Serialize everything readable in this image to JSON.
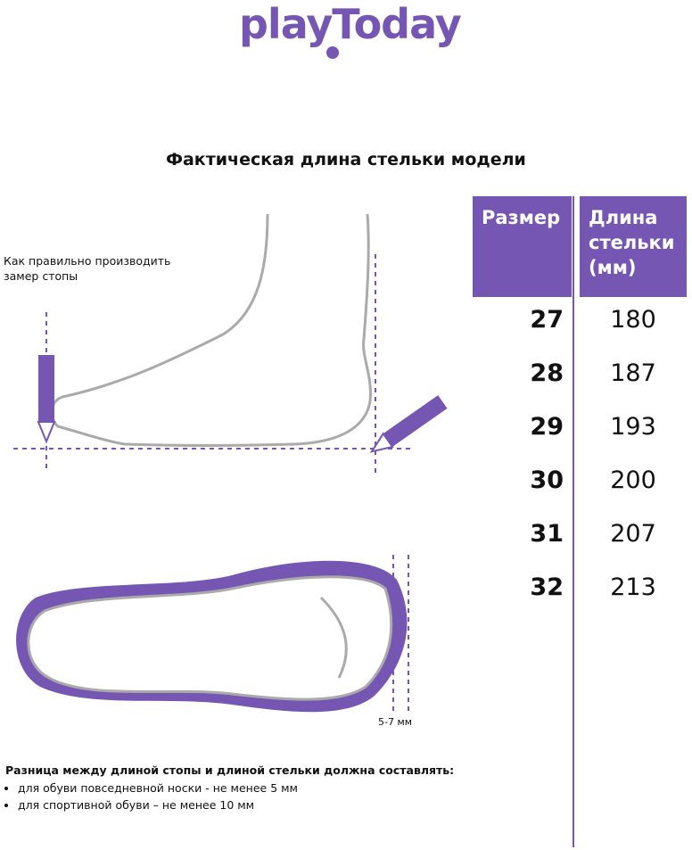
{
  "brand": {
    "logo_text": "playToday",
    "color": "#7656b3"
  },
  "title": "Фактическая длина стельки модели",
  "table": {
    "headers": {
      "size": "Размер",
      "length": "Длина стельки (мм)"
    },
    "rows": [
      {
        "size": "27",
        "length": "180"
      },
      {
        "size": "28",
        "length": "187"
      },
      {
        "size": "29",
        "length": "193"
      },
      {
        "size": "30",
        "length": "200"
      },
      {
        "size": "31",
        "length": "207"
      },
      {
        "size": "32",
        "length": "213"
      }
    ]
  },
  "measure_caption": "Как правильно производить замер стопы",
  "gap_label": "5-7 мм",
  "notes": {
    "heading": "Разница между длиной стопы и длиной стельки должна составлять:",
    "items": [
      "для обуви повседневной носки -  не менее 5 мм",
      "для спортивной обуви – не менее 10 мм"
    ]
  }
}
